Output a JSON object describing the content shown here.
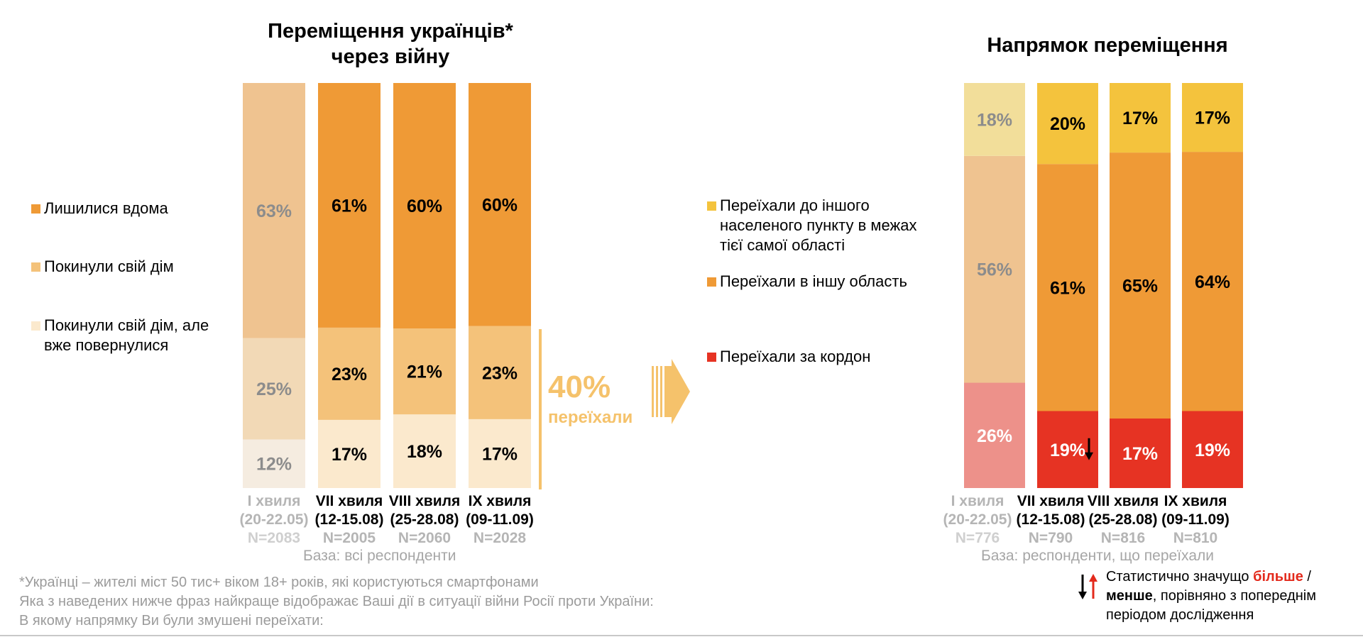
{
  "left": {
    "title_line1": "Переміщення українців*",
    "title_line2": "через війну",
    "legend": [
      {
        "label_lines": [
          "Лишилися вдома"
        ],
        "color": "#ef9a36"
      },
      {
        "label_lines": [
          "Покинули свій дім"
        ],
        "color": "#f4c27a"
      },
      {
        "label_lines": [
          "Покинули свій дім, але",
          "вже повернулися"
        ],
        "color": "#fbe9cd"
      }
    ],
    "waves": [
      {
        "name": "I хвиля",
        "dates": "(20-22.05)",
        "n": "N=2083",
        "muted": true
      },
      {
        "name": "VII хвиля",
        "dates": "(12-15.08)",
        "n": "N=2005",
        "muted": false
      },
      {
        "name": "VIII хвиля",
        "dates": "(25-28.08)",
        "n": "N=2060",
        "muted": false
      },
      {
        "name": "IX хвиля",
        "dates": "(09-11.09)",
        "n": "N=2028",
        "muted": false
      }
    ],
    "base": "База: всі респонденти",
    "moved_pct": "40%",
    "moved_label": "переїхали"
  },
  "right": {
    "title": "Напрямок переміщення",
    "legend": [
      {
        "label_lines": [
          "Переїхали до іншого",
          "населеного пункту в межах",
          "тієї самої області"
        ],
        "color": "#f4c33d"
      },
      {
        "label_lines": [
          "Переїхали в іншу область"
        ],
        "color": "#ef9a36"
      },
      {
        "label_lines": [
          "Переїхали за кордон"
        ],
        "color": "#e63323"
      }
    ],
    "waves": [
      {
        "name": "I хвиля",
        "dates": "(20-22.05)",
        "n": "N=776",
        "muted": true
      },
      {
        "name": "VII хвиля",
        "dates": "(12-15.08)",
        "n": "N=790",
        "muted": false
      },
      {
        "name": "VIII хвиля",
        "dates": "(25-28.08)",
        "n": "N=816",
        "muted": false
      },
      {
        "name": "IX хвиля",
        "dates": "(09-11.09)",
        "n": "N=810",
        "muted": false
      }
    ],
    "base": "База: респонденти, що переїхали"
  },
  "footnotes": [
    "*Українці – жителі міст 50 тис+ віком 18+ років, які користуються смартфонами",
    "Яка з наведених нижче фраз найкраще відображає Ваші дії в ситуації війни Росії проти України:",
    "В якому напрямку Ви були змушені переїхати:"
  ],
  "significance": {
    "line1_prefix": "Статистично значущо ",
    "line1_more": "більше",
    "line1_slash": " /",
    "line2_less": "менше",
    "line2_rest": ", порівняно з попереднім",
    "line3": "періодом дослідження"
  },
  "chart_data": [
    {
      "type": "bar",
      "stacked": true,
      "categories": [
        "I хвиля (20-22.05)",
        "VII хвиля (12-15.08)",
        "VIII хвиля (25-28.08)",
        "IX хвиля (09-11.09)"
      ],
      "series": [
        {
          "name": "Покинули свій дім, але вже повернулися",
          "values": [
            12,
            17,
            18,
            17
          ],
          "color": "#fbe9cd",
          "muted_color": "#f5ece0"
        },
        {
          "name": "Покинули свій дім",
          "values": [
            25,
            23,
            21,
            23
          ],
          "color": "#f4c27a",
          "muted_color": "#f2d9b6"
        },
        {
          "name": "Лишилися вдома",
          "values": [
            63,
            61,
            60,
            60
          ],
          "color": "#ef9a36",
          "muted_color": "#efc390"
        }
      ],
      "ylim": [
        0,
        100
      ],
      "title": "Переміщення українців* через війну"
    },
    {
      "type": "bar",
      "stacked": true,
      "categories": [
        "I хвиля (20-22.05)",
        "VII хвиля (12-15.08)",
        "VIII хвиля (25-28.08)",
        "IX хвиля (09-11.09)"
      ],
      "series": [
        {
          "name": "Переїхали за кордон",
          "values": [
            26,
            19,
            17,
            19
          ],
          "color": "#e63323",
          "muted_color": "#ed918a"
        },
        {
          "name": "Переїхали в іншу область",
          "values": [
            56,
            61,
            65,
            64
          ],
          "color": "#ef9a36",
          "muted_color": "#efc390"
        },
        {
          "name": "Переїхали до іншого населеного пункту в межах тієї самої області",
          "values": [
            18,
            20,
            17,
            17
          ],
          "color": "#f4c33d",
          "muted_color": "#f2de9a"
        }
      ],
      "ylim": [
        0,
        100
      ],
      "significance_marks": [
        {
          "series": "Переїхали за кордон",
          "category_index": 1,
          "direction": "down"
        }
      ],
      "title": "Напрямок переміщення"
    }
  ]
}
